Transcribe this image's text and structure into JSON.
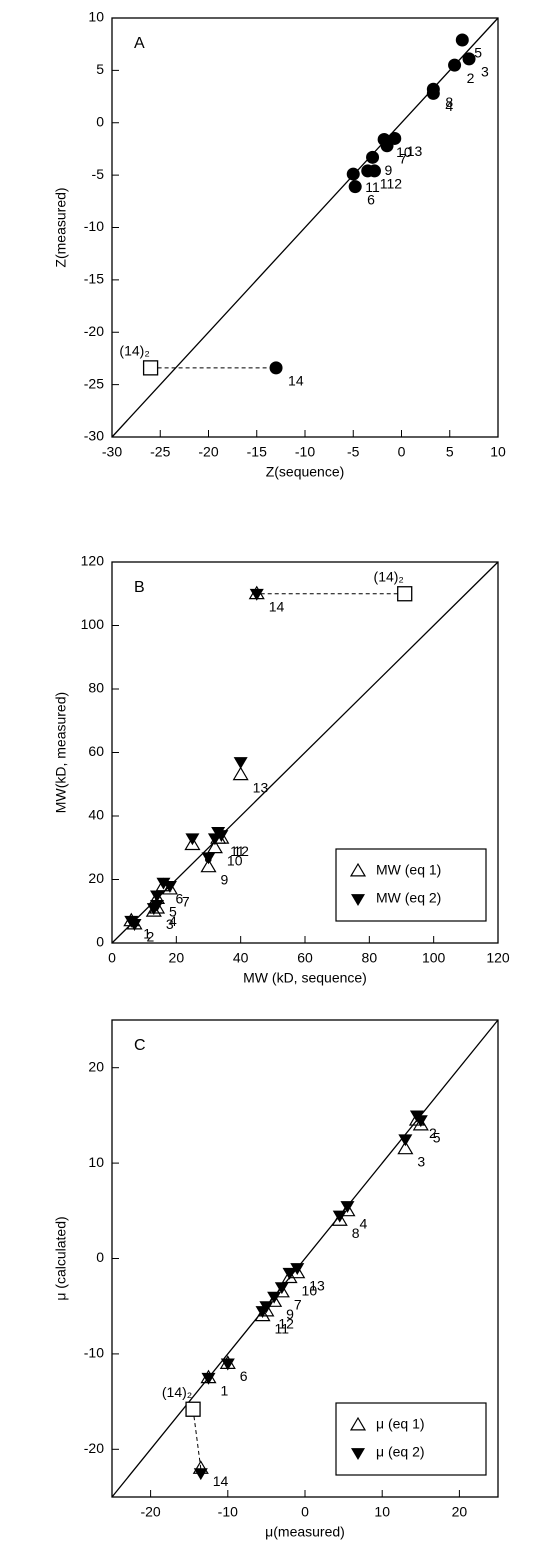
{
  "chart_data": [
    {
      "type": "scatter",
      "panel": "A",
      "xlabel": "Z(sequence)",
      "ylabel": "Z(measured)",
      "xlim": [
        -30,
        10
      ],
      "ylim": [
        -30,
        10
      ],
      "xticks": [
        -30,
        -25,
        -20,
        -15,
        -10,
        -5,
        0,
        5,
        10
      ],
      "yticks": [
        -30,
        -25,
        -20,
        -15,
        -10,
        -5,
        0,
        5,
        10
      ],
      "identity_line": true,
      "series": [
        {
          "marker": "circle",
          "color": "#000000",
          "x": [
            -3.5,
            5.5,
            7,
            3.3,
            6.3,
            -4.8,
            -1.5,
            3.3,
            -3,
            -1.8,
            -5,
            -2.8,
            -0.7,
            -13
          ],
          "values": [
            -4.6,
            5.5,
            6.1,
            2.8,
            7.9,
            -6.1,
            -2.2,
            3.2,
            -3.3,
            -1.6,
            -4.9,
            -4.6,
            -1.5,
            -23.4
          ],
          "labels": [
            "1",
            "2",
            "3",
            "4",
            "5",
            "6",
            "7",
            "8",
            "9",
            "10",
            "11",
            "12",
            "13",
            "14"
          ]
        },
        {
          "marker": "square",
          "color": "#000000",
          "x": [
            -26
          ],
          "values": [
            -23.4
          ],
          "labels": [
            "(14)₂"
          ]
        }
      ]
    },
    {
      "type": "scatter",
      "panel": "B",
      "xlabel": "MW (kD, sequence)",
      "ylabel": "MW(kD, measured)",
      "xlim": [
        0,
        120
      ],
      "ylim": [
        0,
        120
      ],
      "xticks": [
        0,
        20,
        40,
        60,
        80,
        100,
        120
      ],
      "yticks": [
        0,
        20,
        40,
        60,
        80,
        100,
        120
      ],
      "identity_line": true,
      "legend": "lower right",
      "series": [
        {
          "name": "MW (eq 1)",
          "marker": "triangle-up",
          "color": "#000000",
          "x": [
            6,
            7,
            13,
            14,
            14,
            16,
            18,
            25,
            30,
            32,
            33,
            34,
            40,
            45
          ],
          "values": [
            7,
            6,
            10,
            11,
            14,
            18,
            17,
            31,
            24,
            30,
            33,
            33,
            53,
            110
          ],
          "labels": [
            "1",
            "2",
            "3",
            "4",
            "5",
            "6",
            "7",
            "8",
            "9",
            "10",
            "11",
            "12",
            "13",
            "14"
          ]
        },
        {
          "name": "MW (eq 2)",
          "marker": "triangle-down",
          "color": "#000000",
          "x": [
            6,
            7,
            13,
            14,
            14,
            16,
            18,
            25,
            30,
            32,
            33,
            34,
            40,
            45
          ],
          "values": [
            7,
            6,
            11,
            12,
            15,
            19,
            18,
            33,
            27,
            33,
            35,
            34,
            57,
            110
          ]
        },
        {
          "marker": "square",
          "color": "#000000",
          "x": [
            91
          ],
          "values": [
            110
          ],
          "labels": [
            "(14)₂"
          ]
        }
      ]
    },
    {
      "type": "scatter",
      "panel": "C",
      "xlabel": "μ(measured)",
      "ylabel": "μ (calculated)",
      "xlim": [
        -25,
        25
      ],
      "ylim": [
        -25,
        25
      ],
      "xticks": [
        -20,
        -10,
        0,
        10,
        20
      ],
      "yticks": [
        -20,
        -10,
        0,
        10,
        20
      ],
      "identity_line": true,
      "legend": "lower right",
      "series": [
        {
          "name": "μ (eq 1)",
          "marker": "triangle-up",
          "color": "#000000",
          "x": [
            -12.5,
            14.5,
            13,
            5.5,
            15,
            -10,
            -3,
            4.5,
            -4,
            -2,
            -5.5,
            -5,
            -1,
            -13.5
          ],
          "values": [
            -12.5,
            14.5,
            11.5,
            5,
            14,
            -11,
            -3.5,
            4,
            -4.5,
            -2,
            -6,
            -5.5,
            -1.5,
            -22
          ],
          "labels": [
            "1",
            "2",
            "3",
            "4",
            "5",
            "6",
            "7",
            "8",
            "9",
            "10",
            "11",
            "12",
            "13",
            "14"
          ]
        },
        {
          "name": "μ (eq 2)",
          "marker": "triangle-down",
          "color": "#000000",
          "x": [
            -12.5,
            14.5,
            13,
            5.5,
            15,
            -10,
            -3,
            4.5,
            -4,
            -2,
            -5.5,
            -5,
            -1,
            -13.5
          ],
          "values": [
            -12.5,
            15,
            12.5,
            5.5,
            14.5,
            -11,
            -3,
            4.5,
            -4,
            -1.5,
            -5.5,
            -5,
            -1,
            -22.5
          ]
        },
        {
          "marker": "square",
          "color": "#000000",
          "x": [
            -14.5
          ],
          "values": [
            -15.8
          ],
          "labels": [
            "(14)₂"
          ]
        }
      ]
    }
  ]
}
